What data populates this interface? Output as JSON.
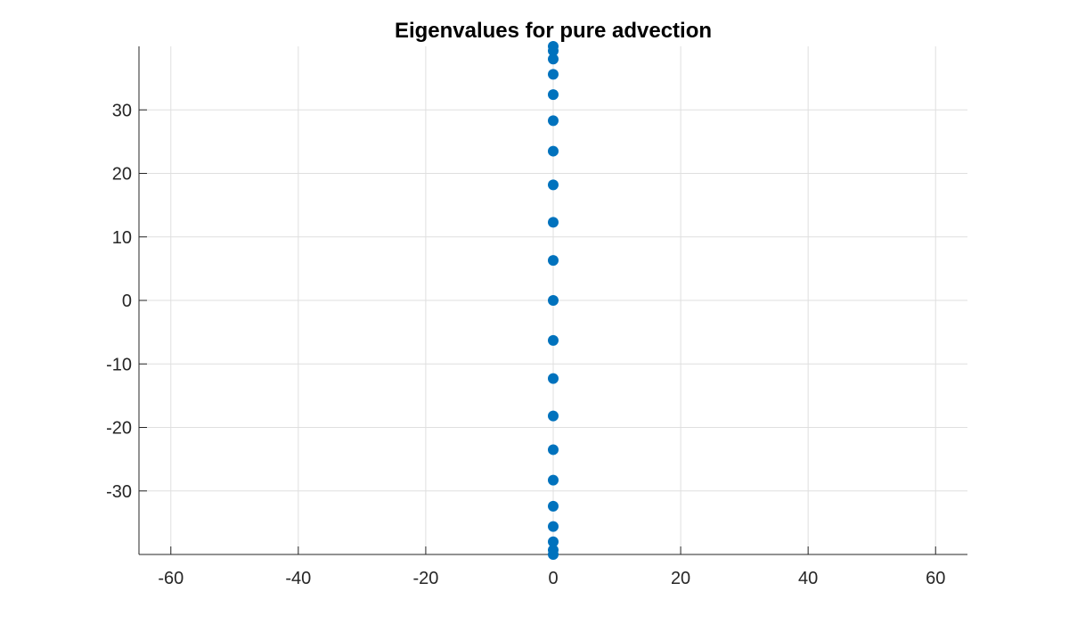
{
  "chart_data": {
    "type": "scatter",
    "title": "Eigenvalues for pure advection",
    "xlabel": "",
    "ylabel": "",
    "xlim": [
      -65,
      65
    ],
    "ylim": [
      -40,
      40
    ],
    "xticks": [
      -60,
      -40,
      -20,
      0,
      20,
      40,
      60
    ],
    "yticks": [
      -30,
      -20,
      -10,
      0,
      10,
      20,
      30
    ],
    "xtick_labels": [
      "-60",
      "-40",
      "-20",
      "0",
      "20",
      "40",
      "60"
    ],
    "ytick_labels": [
      "-30",
      "-20",
      "-10",
      "0",
      "10",
      "20",
      "30"
    ],
    "grid": true,
    "marker_color": "#0072bd",
    "points": [
      {
        "x": 0,
        "y": 40.0
      },
      {
        "x": 0,
        "y": 39.3
      },
      {
        "x": 0,
        "y": 38.0
      },
      {
        "x": 0,
        "y": 35.6
      },
      {
        "x": 0,
        "y": 32.4
      },
      {
        "x": 0,
        "y": 28.3
      },
      {
        "x": 0,
        "y": 23.5
      },
      {
        "x": 0,
        "y": 18.2
      },
      {
        "x": 0,
        "y": 12.3
      },
      {
        "x": 0,
        "y": 6.3
      },
      {
        "x": 0,
        "y": 0.0
      },
      {
        "x": 0,
        "y": -6.3
      },
      {
        "x": 0,
        "y": -12.3
      },
      {
        "x": 0,
        "y": -18.2
      },
      {
        "x": 0,
        "y": -23.5
      },
      {
        "x": 0,
        "y": -28.3
      },
      {
        "x": 0,
        "y": -32.4
      },
      {
        "x": 0,
        "y": -35.6
      },
      {
        "x": 0,
        "y": -38.0
      },
      {
        "x": 0,
        "y": -39.3
      },
      {
        "x": 0,
        "y": -40.0
      }
    ]
  }
}
